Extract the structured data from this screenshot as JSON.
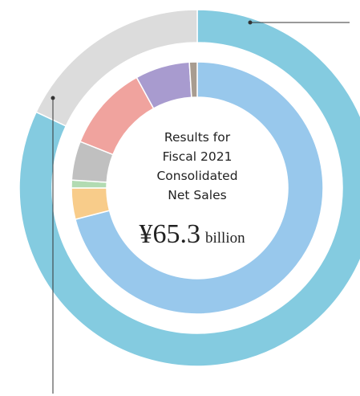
{
  "chart_data": {
    "type": "donut",
    "title_lines": [
      "Results for",
      "Fiscal 2021",
      "Consolidated",
      "Net Sales"
    ],
    "center_value_label": "¥65.3",
    "center_unit": "billion",
    "rings": [
      {
        "values": [
          82,
          18
        ],
        "colors": [
          "#84cbe0",
          "#dcdcdc"
        ]
      },
      {
        "values": [
          71,
          4,
          1,
          5,
          11,
          7,
          1
        ],
        "colors": [
          "#98c8ec",
          "#f8cc8a",
          "#b2dbb2",
          "#c0c0c0",
          "#f0a39e",
          "#a89bcf",
          "#a89c90"
        ]
      }
    ]
  }
}
